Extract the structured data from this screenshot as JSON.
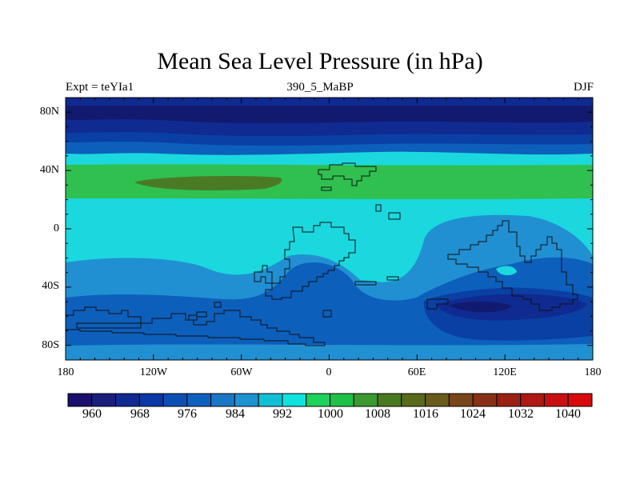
{
  "title": "Mean Sea Level Pressure (in hPa)",
  "subtitle": {
    "left": "Expt = teYIa1",
    "center": "390_5_MaBP",
    "right": "DJF"
  },
  "map": {
    "lat_ticks": [
      "80N",
      "40N",
      "0",
      "40S",
      "80S"
    ],
    "lon_ticks": [
      "180",
      "120W",
      "60W",
      "0",
      "60E",
      "120E",
      "180"
    ]
  },
  "colorbar": {
    "colors": [
      "#1a0f6e",
      "#1a1c80",
      "#102a92",
      "#0a38a6",
      "#0b4fb4",
      "#0d62c0",
      "#1a77c6",
      "#1f93d2",
      "#12c0d6",
      "#0fe2e0",
      "#1fd05a",
      "#1fc045",
      "#3a9a30",
      "#4a7a20",
      "#5a6a1a",
      "#6a5a1a",
      "#7a4518",
      "#8a3016",
      "#9a2014",
      "#b01812",
      "#c81010",
      "#d80a0a"
    ],
    "labels": [
      "960",
      "968",
      "976",
      "984",
      "992",
      "1000",
      "1008",
      "1016",
      "1024",
      "1032",
      "1040"
    ]
  },
  "colors": {
    "d960": "#121a70",
    "d968": "#0f2a90",
    "d976": "#0a3fa4",
    "d984": "#0d5fbc",
    "d992": "#2190d2",
    "d1000": "#1ad8de",
    "d1008": "#30c050",
    "d1016": "#4a7a24",
    "coast": "#111111"
  }
}
